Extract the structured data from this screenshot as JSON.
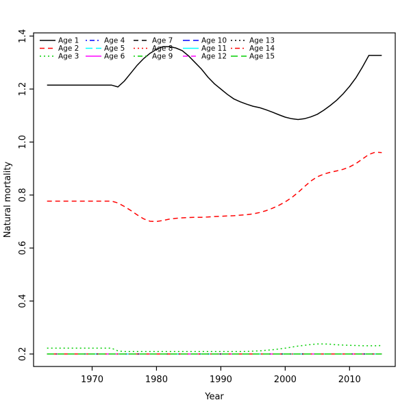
{
  "figure": {
    "background": "#ffffff",
    "plot_border_color": "#000000"
  },
  "chart_data": {
    "type": "line",
    "title": "",
    "xlabel": "Year",
    "ylabel": "Natural mortality",
    "grid": false,
    "legend_position": "top-left-inside",
    "legend_columns": 5,
    "xlim": [
      1960.9,
      2017.1
    ],
    "ylim": [
      0.153,
      1.412
    ],
    "x_ticks": [
      "1970",
      "1980",
      "1990",
      "2000",
      "2010"
    ],
    "x_tick_values": [
      1970,
      1980,
      1990,
      2000,
      2010
    ],
    "y_ticks": [
      "0.2",
      "0.4",
      "0.6",
      "0.8",
      "1.0",
      "1.2",
      "1.4"
    ],
    "y_tick_values": [
      0.2,
      0.4,
      0.6,
      0.8,
      1.0,
      1.2,
      1.4
    ],
    "x": [
      1963,
      1964,
      1965,
      1966,
      1967,
      1968,
      1969,
      1970,
      1971,
      1972,
      1973,
      1974,
      1975,
      1976,
      1977,
      1978,
      1979,
      1980,
      1981,
      1982,
      1983,
      1984,
      1985,
      1986,
      1987,
      1988,
      1989,
      1990,
      1991,
      1992,
      1993,
      1994,
      1995,
      1996,
      1997,
      1998,
      1999,
      2000,
      2001,
      2002,
      2003,
      2004,
      2005,
      2006,
      2007,
      2008,
      2009,
      2010,
      2011,
      2012,
      2013,
      2014,
      2015
    ],
    "series": [
      {
        "name": "Age 1",
        "color": "#000000",
        "dash": "solid",
        "values": [
          1.215,
          1.215,
          1.215,
          1.215,
          1.215,
          1.215,
          1.215,
          1.215,
          1.215,
          1.215,
          1.215,
          1.208,
          1.23,
          1.26,
          1.29,
          1.315,
          1.335,
          1.35,
          1.36,
          1.36,
          1.355,
          1.345,
          1.325,
          1.3,
          1.275,
          1.245,
          1.22,
          1.2,
          1.18,
          1.163,
          1.152,
          1.143,
          1.135,
          1.13,
          1.122,
          1.113,
          1.103,
          1.094,
          1.088,
          1.085,
          1.088,
          1.095,
          1.105,
          1.12,
          1.138,
          1.158,
          1.182,
          1.21,
          1.243,
          1.283,
          1.327,
          1.327,
          1.327
        ]
      },
      {
        "name": "Age 2",
        "color": "#FF0000",
        "dash": "dashed",
        "values": [
          0.777,
          0.777,
          0.777,
          0.777,
          0.777,
          0.777,
          0.777,
          0.777,
          0.777,
          0.777,
          0.777,
          0.77,
          0.757,
          0.742,
          0.725,
          0.71,
          0.701,
          0.7,
          0.704,
          0.709,
          0.712,
          0.714,
          0.715,
          0.716,
          0.716,
          0.717,
          0.719,
          0.72,
          0.721,
          0.722,
          0.724,
          0.726,
          0.729,
          0.734,
          0.741,
          0.75,
          0.761,
          0.774,
          0.79,
          0.81,
          0.832,
          0.853,
          0.869,
          0.879,
          0.886,
          0.891,
          0.897,
          0.906,
          0.919,
          0.936,
          0.953,
          0.962,
          0.96
        ]
      },
      {
        "name": "Age 3",
        "color": "#00CD00",
        "dash": "dotted",
        "values": [
          0.222,
          0.222,
          0.222,
          0.222,
          0.222,
          0.222,
          0.222,
          0.222,
          0.222,
          0.222,
          0.222,
          0.212,
          0.209,
          0.209,
          0.209,
          0.209,
          0.209,
          0.209,
          0.209,
          0.209,
          0.209,
          0.209,
          0.209,
          0.209,
          0.209,
          0.209,
          0.209,
          0.209,
          0.209,
          0.209,
          0.209,
          0.21,
          0.211,
          0.212,
          0.214,
          0.216,
          0.219,
          0.222,
          0.226,
          0.23,
          0.233,
          0.236,
          0.238,
          0.238,
          0.237,
          0.235,
          0.234,
          0.233,
          0.232,
          0.231,
          0.231,
          0.231,
          0.232
        ]
      },
      {
        "name": "Age 4",
        "color": "#0000FF",
        "dash": "dashdot",
        "constant": 0.2
      },
      {
        "name": "Age 5",
        "color": "#00FFFF",
        "dash": "longdash",
        "constant": 0.2
      },
      {
        "name": "Age 6",
        "color": "#FF00FF",
        "dash": "solid",
        "constant": 0.2
      },
      {
        "name": "Age 7",
        "color": "#000000",
        "dash": "dashed",
        "constant": 0.2
      },
      {
        "name": "Age 8",
        "color": "#FF0000",
        "dash": "dotted",
        "constant": 0.2
      },
      {
        "name": "Age 9",
        "color": "#00CD00",
        "dash": "dashdot",
        "constant": 0.2
      },
      {
        "name": "Age 10",
        "color": "#0000FF",
        "dash": "longdash",
        "constant": 0.2
      },
      {
        "name": "Age 11",
        "color": "#00FFFF",
        "dash": "solid",
        "constant": 0.2
      },
      {
        "name": "Age 12",
        "color": "#FF00FF",
        "dash": "dashed",
        "constant": 0.2
      },
      {
        "name": "Age 13",
        "color": "#000000",
        "dash": "dotted",
        "constant": 0.2
      },
      {
        "name": "Age 14",
        "color": "#FF0000",
        "dash": "dashdot",
        "constant": 0.2
      },
      {
        "name": "Age 15",
        "color": "#00CD00",
        "dash": "longdash",
        "constant": 0.2
      }
    ]
  }
}
